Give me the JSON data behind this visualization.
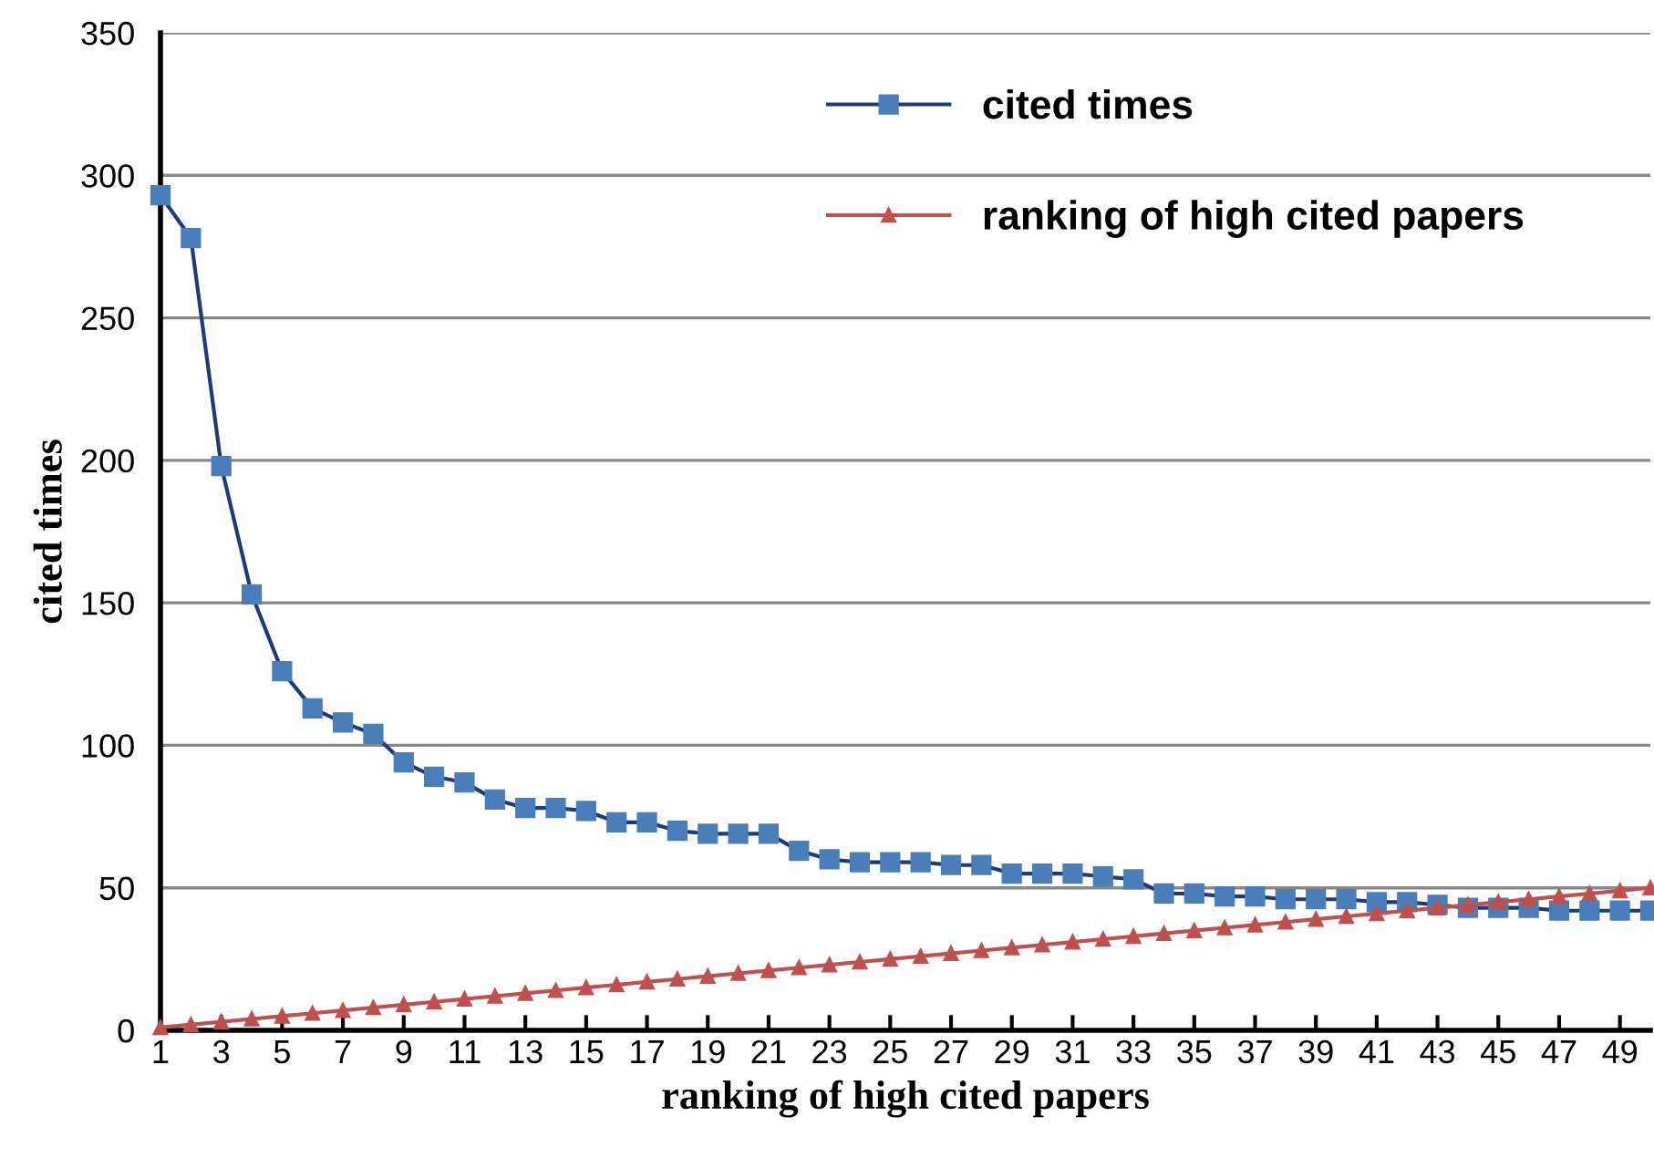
{
  "chart_data": {
    "type": "line",
    "xlabel": "ranking of high cited papers",
    "ylabel": "cited times",
    "categories": [
      "1",
      null,
      "3",
      null,
      "5",
      null,
      "7",
      null,
      "9",
      null,
      "11",
      null,
      "13",
      null,
      "15",
      null,
      "17",
      null,
      "19",
      null,
      "21",
      null,
      "23",
      null,
      "25",
      null,
      "27",
      null,
      "29",
      null,
      "31",
      null,
      "33",
      null,
      "35",
      null,
      "37",
      null,
      "39",
      null,
      "41",
      null,
      "43",
      null,
      "45",
      null,
      "47",
      null,
      "49",
      null
    ],
    "series": [
      {
        "name": "cited times",
        "color": "#4a7ebb",
        "marker": "square",
        "values": [
          293,
          278,
          198,
          153,
          126,
          113,
          108,
          104,
          94,
          89,
          87,
          81,
          78,
          78,
          77,
          73,
          73,
          70,
          69,
          69,
          69,
          63,
          60,
          59,
          59,
          59,
          58,
          58,
          55,
          55,
          55,
          54,
          53,
          48,
          48,
          47,
          47,
          46,
          46,
          46,
          45,
          45,
          44,
          43,
          43,
          43,
          42,
          42,
          42,
          42
        ]
      },
      {
        "name": "ranking of high cited papers",
        "color": "#c0504d",
        "marker": "triangle",
        "values": [
          1,
          2,
          3,
          4,
          5,
          6,
          7,
          8,
          9,
          10,
          11,
          12,
          13,
          14,
          15,
          16,
          17,
          18,
          19,
          20,
          21,
          22,
          23,
          24,
          25,
          26,
          27,
          28,
          29,
          30,
          31,
          32,
          33,
          34,
          35,
          36,
          37,
          38,
          39,
          40,
          41,
          42,
          43,
          44,
          45,
          46,
          47,
          48,
          49,
          50
        ]
      }
    ],
    "ylim": [
      0,
      350
    ],
    "yticks": [
      0,
      50,
      100,
      150,
      200,
      250,
      300,
      350
    ],
    "grid": "y",
    "legend": "top right"
  }
}
